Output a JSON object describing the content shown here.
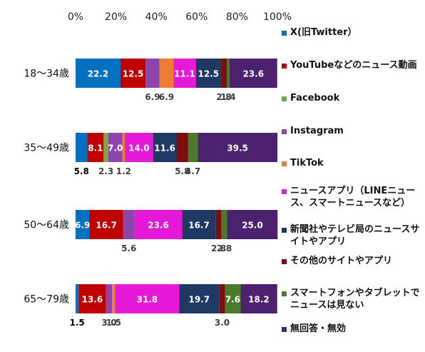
{
  "chart_data": {
    "type": "bar",
    "orientation": "horizontal",
    "stacked": "percent",
    "categories": [
      "18～34歳",
      "35～49歳",
      "50～64歳",
      "65～79歳"
    ],
    "xlim": [
      0,
      100
    ],
    "x_ticks": [
      "0%",
      "20%",
      "40%",
      "60%",
      "80%",
      "100%"
    ],
    "grid": false,
    "legend_position": "right",
    "series": [
      {
        "name": "X(旧Twitter）",
        "color": "#0070C0",
        "values": [
          22.2,
          5.8,
          6.9,
          1.5
        ],
        "labels": [
          "22.2",
          "5.8",
          "6.9",
          "1.5"
        ]
      },
      {
        "name": "YouTubeなどのニュース動画",
        "color": "#C00000",
        "values": [
          12.5,
          8.1,
          16.7,
          13.6
        ],
        "labels": [
          "12.5",
          "8.1",
          "16.7",
          "13.6"
        ]
      },
      {
        "name": "Facebook",
        "color": "#70AD47",
        "values": [
          0,
          2.3,
          0,
          0
        ],
        "labels": [
          "",
          "2.3",
          "",
          ""
        ]
      },
      {
        "name": "Instagram",
        "color": "#8E44AD",
        "values": [
          6.9,
          7.0,
          5.6,
          3.0
        ],
        "labels": [
          "6.9",
          "7.0",
          "5.6",
          "3.0"
        ]
      },
      {
        "name": "TikTok",
        "color": "#ED7D31",
        "values": [
          6.9,
          1.2,
          0,
          1.5
        ],
        "labels": [
          "6.9",
          "1.2",
          "",
          "1.5"
        ]
      },
      {
        "name": "ニュースアプリ（LINEニュース、スマートニュースなど）",
        "color": "#E619D9",
        "values": [
          11.1,
          14.0,
          23.6,
          31.8
        ],
        "labels": [
          "11.1",
          "14.0",
          "23.6",
          "31.8"
        ]
      },
      {
        "name": "新聞社やテレビ局のニュースサイトやアプリ",
        "color": "#1F3864",
        "values": [
          12.5,
          11.6,
          16.7,
          19.7
        ],
        "labels": [
          "12.5",
          "11.6",
          "16.7",
          "19.7"
        ]
      },
      {
        "name": "その他のサイトやアプリ",
        "color": "#7B0F0F",
        "values": [
          2.8,
          5.8,
          2.8,
          3.0
        ],
        "labels": [
          "2.8",
          "5.8",
          "2.8",
          "3.0"
        ]
      },
      {
        "name": "スマートフォンやタブレットでニュースは見ない",
        "color": "#4C7A2B",
        "values": [
          1.4,
          4.7,
          2.8,
          7.6
        ],
        "labels": [
          "1.4",
          "4.7",
          "2.8",
          "7.6"
        ]
      },
      {
        "name": "無回答・無効",
        "color": "#4B2170",
        "values": [
          23.6,
          39.5,
          25.0,
          18.2
        ],
        "labels": [
          "23.6",
          "39.5",
          "25.0",
          "18.2"
        ]
      }
    ],
    "data_labels": [
      [
        {
          "series": 0,
          "text": "22.2",
          "place": "inside",
          "color": "#ffffff"
        },
        {
          "series": 1,
          "text": "12.5",
          "place": "inside",
          "color": "#ffffff"
        },
        {
          "series": 3,
          "text": "6.9",
          "place": "below",
          "color": "#404040"
        },
        {
          "series": 4,
          "text": "6.9",
          "place": "below",
          "color": "#404040"
        },
        {
          "series": 5,
          "text": "11.1",
          "place": "inside",
          "color": "#ffffff"
        },
        {
          "series": 6,
          "text": "12.5",
          "place": "inside",
          "color": "#ffffff"
        },
        {
          "series": 7,
          "text": "2.8",
          "place": "below",
          "color": "#404040"
        },
        {
          "series": 8,
          "text": "1.4",
          "place": "below",
          "color": "#404040"
        },
        {
          "series": 9,
          "text": "23.6",
          "place": "inside",
          "color": "#ffffff"
        }
      ],
      [
        {
          "series": 0,
          "text": "5.8",
          "place": "below",
          "color": "#000000"
        },
        {
          "series": 1,
          "text": "8.1",
          "place": "inside",
          "color": "#ffffff"
        },
        {
          "series": 2,
          "text": "2.3",
          "place": "below",
          "color": "#404040"
        },
        {
          "series": 3,
          "text": "7.0",
          "place": "inside",
          "color": "#ffffff"
        },
        {
          "series": 4,
          "text": "1.2",
          "place": "below",
          "color": "#404040"
        },
        {
          "series": 5,
          "text": "14.0",
          "place": "inside",
          "color": "#ffffff"
        },
        {
          "series": 6,
          "text": "11.6",
          "place": "inside",
          "color": "#ffffff"
        },
        {
          "series": 7,
          "text": "5.8",
          "place": "below",
          "color": "#404040"
        },
        {
          "series": 8,
          "text": "4.7",
          "place": "below",
          "color": "#404040"
        },
        {
          "series": 9,
          "text": "39.5",
          "place": "inside",
          "color": "#ffffff"
        }
      ],
      [
        {
          "series": 0,
          "text": "6.9",
          "place": "inside",
          "color": "#ffffff"
        },
        {
          "series": 1,
          "text": "16.7",
          "place": "inside",
          "color": "#ffffff"
        },
        {
          "series": 3,
          "text": "5.6",
          "place": "below",
          "color": "#404040"
        },
        {
          "series": 5,
          "text": "23.6",
          "place": "inside",
          "color": "#ffffff"
        },
        {
          "series": 6,
          "text": "16.7",
          "place": "inside",
          "color": "#ffffff"
        },
        {
          "series": 7,
          "text": "2.8",
          "place": "below",
          "color": "#404040"
        },
        {
          "series": 8,
          "text": "2.8",
          "place": "below",
          "color": "#404040"
        },
        {
          "series": 9,
          "text": "25.0",
          "place": "inside",
          "color": "#ffffff"
        }
      ],
      [
        {
          "series": 0,
          "text": "1.5",
          "place": "below",
          "color": "#000000"
        },
        {
          "series": 1,
          "text": "13.6",
          "place": "inside",
          "color": "#ffffff"
        },
        {
          "series": 3,
          "text": "3.0",
          "place": "below",
          "color": "#404040"
        },
        {
          "series": 4,
          "text": "1.5",
          "place": "below",
          "color": "#404040"
        },
        {
          "series": 5,
          "text": "31.8",
          "place": "inside",
          "color": "#ffffff"
        },
        {
          "series": 6,
          "text": "19.7",
          "place": "inside",
          "color": "#ffffff"
        },
        {
          "series": 7,
          "text": "3.0",
          "place": "below",
          "color": "#404040"
        },
        {
          "series": 8,
          "text": "7.6",
          "place": "inside",
          "color": "#ffffff"
        },
        {
          "series": 9,
          "text": "18.2",
          "place": "inside",
          "color": "#ffffff"
        }
      ]
    ]
  }
}
